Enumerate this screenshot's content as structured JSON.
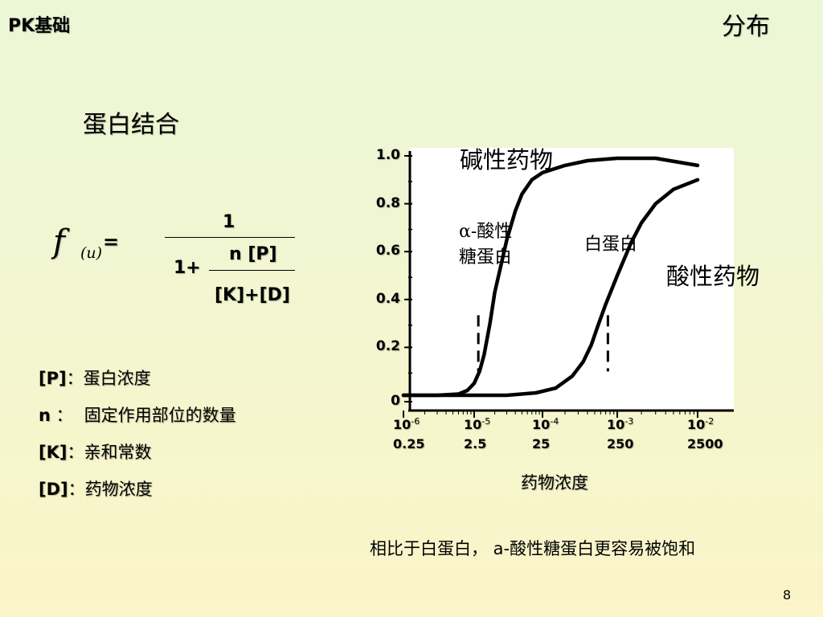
{
  "header": {
    "left": "PK基础",
    "right": "分布"
  },
  "section_title": "蛋白结合",
  "formula": {
    "f": "f",
    "subscript": "(u)",
    "equals": "=",
    "numerator": "1",
    "one_plus": "1+",
    "inner_numerator": "n [P]",
    "inner_denominator": "[K]+[D]"
  },
  "legend": [
    {
      "symbol": "[P]",
      "sep": "：",
      "text": "蛋白浓度"
    },
    {
      "symbol": "n",
      "sep": " ：",
      "text": "固定作用部位的数量"
    },
    {
      "symbol": "[K]",
      "sep": "：",
      "text": "亲和常数"
    },
    {
      "symbol": "[D]",
      "sep": "：",
      "text": "药物浓度"
    }
  ],
  "chart_data": {
    "type": "line",
    "title": "",
    "xlabel": "药物浓度",
    "ylabel": "",
    "x_scale": "log",
    "x_tick_labels": [
      {
        "base": "10",
        "exp": "-6",
        "conc": "0.25"
      },
      {
        "base": "10",
        "exp": "-5",
        "conc": "2.5"
      },
      {
        "base": "10",
        "exp": "-4",
        "conc": "25"
      },
      {
        "base": "10",
        "exp": "-3",
        "conc": "250"
      },
      {
        "base": "10",
        "exp": "-2",
        "conc": "2500"
      }
    ],
    "y_ticks": [
      "1.0",
      "0.8",
      "0.6",
      "0.4",
      "0.2",
      "0"
    ],
    "ylim": [
      0,
      1.0
    ],
    "xlim": [
      1e-06,
      0.01
    ],
    "annotations": {
      "base_drug": "碱性药物",
      "acid_drug": "酸性药物",
      "agp_line1": "α-酸性",
      "agp_line2": "糖蛋白",
      "albumin": "白蛋白"
    },
    "series": [
      {
        "x": [
          1e-06,
          3e-06,
          6e-06,
          8e-06,
          1e-05,
          1.2e-05,
          1.4e-05,
          1.7e-05,
          2e-05,
          2.5e-05,
          3e-05,
          4e-05,
          5e-05,
          7e-05,
          0.0001,
          0.0002,
          0.0004,
          0.001,
          0.003,
          0.01
        ],
        "y": [
          0.0,
          0.0,
          0.005,
          0.02,
          0.05,
          0.1,
          0.17,
          0.3,
          0.43,
          0.55,
          0.65,
          0.77,
          0.84,
          0.9,
          0.93,
          0.96,
          0.98,
          0.99,
          0.99,
          0.96
        ]
      },
      {
        "x": [
          1e-06,
          3e-05,
          8e-05,
          0.00015,
          0.00025,
          0.00035,
          0.00045,
          0.00055,
          0.0007,
          0.001,
          0.0015,
          0.002,
          0.003,
          0.005,
          0.01
        ],
        "y": [
          0.0,
          0.0,
          0.01,
          0.03,
          0.08,
          0.14,
          0.21,
          0.29,
          0.38,
          0.5,
          0.64,
          0.72,
          0.8,
          0.86,
          0.9
        ]
      }
    ],
    "markers": [
      {
        "x": 1.15e-05,
        "y": 0.2
      },
      {
        "x": 0.00075,
        "y": 0.2
      }
    ],
    "grid": false
  },
  "footnote": "相比于白蛋白， a-酸性糖蛋白更容易被饱和",
  "page_number": "8"
}
